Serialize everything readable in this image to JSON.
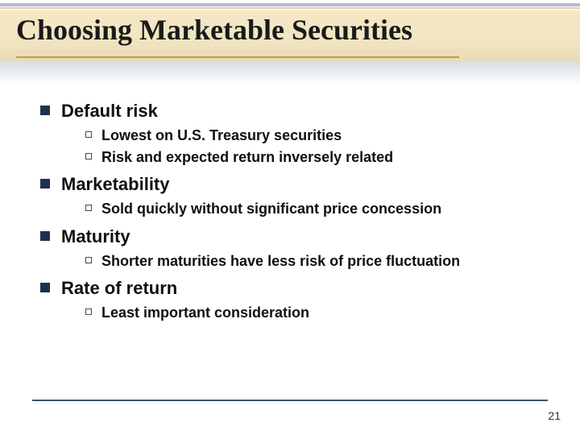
{
  "slide": {
    "title": "Choosing Marketable Securities",
    "page_number": "21",
    "colors": {
      "title_color": "#1a1a1a",
      "body_color": "#101010",
      "lvl1_bullet": "#203050",
      "lvl2_bullet_border": "#404858",
      "title_underline": "#c89838",
      "footer_line": "#203050",
      "bg_top_band": "#f0e4c0",
      "bg_mid_band": "#e8ecf0",
      "bg_main": "#ffffff"
    },
    "typography": {
      "title_family": "Times New Roman",
      "title_size_pt": 27,
      "body_family": "Arial",
      "lvl1_size_pt": 17,
      "lvl2_size_pt": 14,
      "all_bold": true
    },
    "items": [
      {
        "label": "Default risk",
        "sub": [
          {
            "label": "Lowest on U.S. Treasury securities"
          },
          {
            "label": "Risk and expected return inversely related"
          }
        ]
      },
      {
        "label": "Marketability",
        "sub": [
          {
            "label": "Sold quickly without significant price concession"
          }
        ]
      },
      {
        "label": "Maturity",
        "sub": [
          {
            "label": "Shorter maturities have less risk of price fluctuation"
          }
        ]
      },
      {
        "label": "Rate of return",
        "sub": [
          {
            "label": "Least important consideration"
          }
        ]
      }
    ]
  }
}
